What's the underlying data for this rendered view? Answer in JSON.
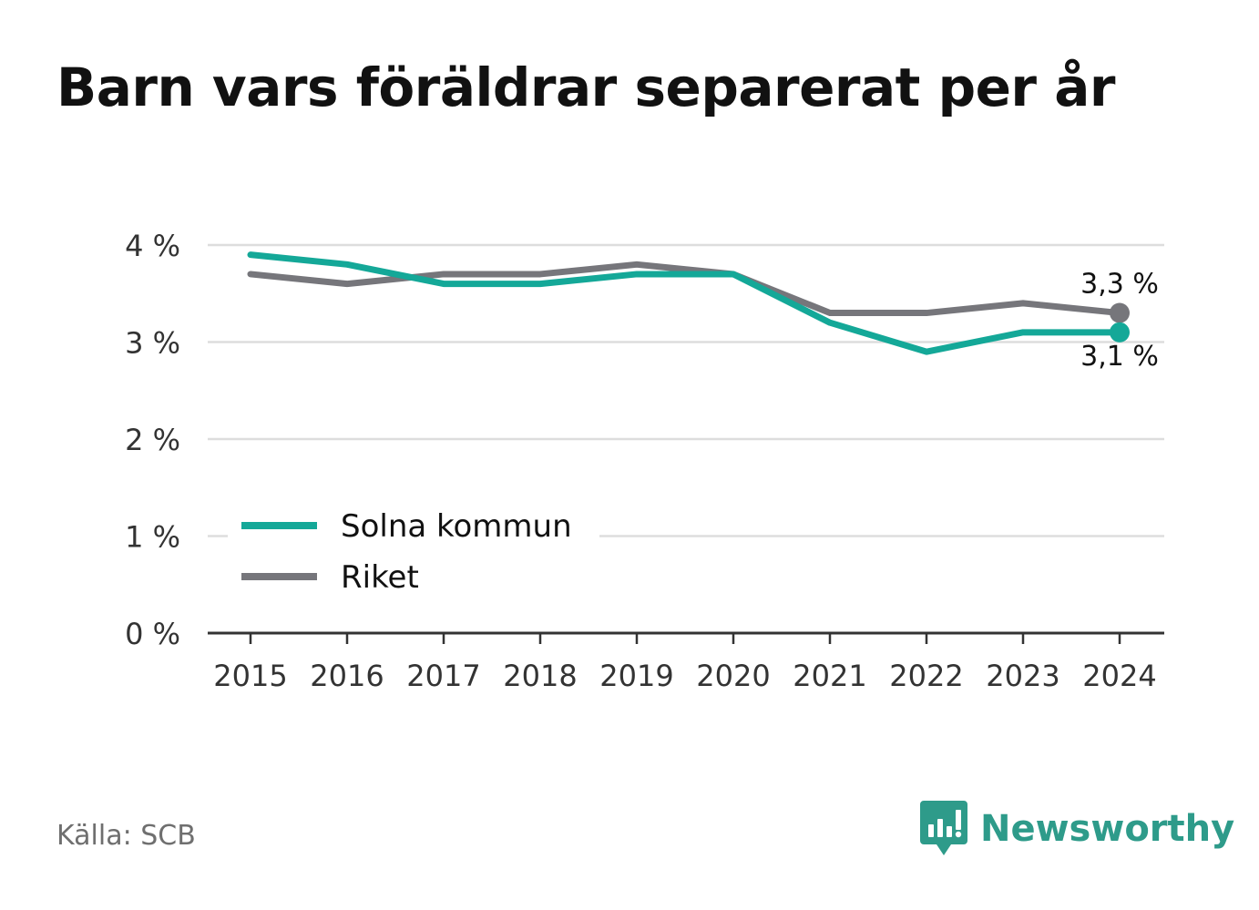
{
  "title": "Barn vars föräldrar separerat per år",
  "source": "Källa: SCB",
  "brand": {
    "name": "Newsworthy",
    "icon": "newsworthy-logo-icon",
    "color": "#2e9b8a"
  },
  "chart_data": {
    "type": "line",
    "title": "Barn vars föräldrar separerat per år",
    "categories": [
      "2015",
      "2016",
      "2017",
      "2018",
      "2019",
      "2020",
      "2021",
      "2022",
      "2023",
      "2024"
    ],
    "series": [
      {
        "name": "Solna kommun",
        "color": "#14a898",
        "values": [
          3.9,
          3.8,
          3.6,
          3.6,
          3.7,
          3.7,
          3.2,
          2.9,
          3.1,
          3.1
        ],
        "end_label": "3,1 %"
      },
      {
        "name": "Riket",
        "color": "#76767b",
        "values": [
          3.7,
          3.6,
          3.7,
          3.7,
          3.8,
          3.7,
          3.3,
          3.3,
          3.4,
          3.3
        ],
        "end_label": "3,3 %"
      }
    ],
    "ylim": [
      0,
      4
    ],
    "yticks": [
      0,
      1,
      2,
      3,
      4
    ],
    "ytick_labels": [
      "0 %",
      "1 %",
      "2 %",
      "3 %",
      "4 %"
    ],
    "grid": true,
    "legend_position": "bottom-left"
  }
}
